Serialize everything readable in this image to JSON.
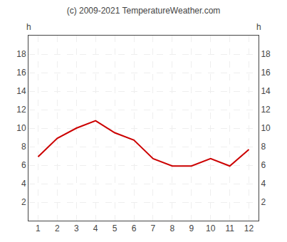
{
  "chart_data": {
    "type": "line",
    "title": "(c) 2009-2021 TemperatureWeather.com",
    "ylabel": "h",
    "y2label": "h",
    "x": [
      1,
      2,
      3,
      4,
      5,
      6,
      7,
      8,
      9,
      10,
      11,
      12
    ],
    "values": [
      6.9,
      8.9,
      10.0,
      10.8,
      9.5,
      8.7,
      6.7,
      5.9,
      5.9,
      6.7,
      5.9,
      7.7
    ],
    "color": "#cc0000",
    "xlim": [
      0.5,
      12.5
    ],
    "xticks": [
      1,
      2,
      3,
      4,
      5,
      6,
      7,
      8,
      9,
      10,
      11,
      12
    ],
    "ylim": [
      0,
      20
    ],
    "yticks": [
      2,
      4,
      6,
      8,
      10,
      12,
      14,
      16,
      18
    ],
    "y2lim": [
      0,
      20
    ],
    "y2ticks": [
      2,
      4,
      6,
      8,
      10,
      12,
      14,
      16,
      18
    ],
    "grid": true
  }
}
